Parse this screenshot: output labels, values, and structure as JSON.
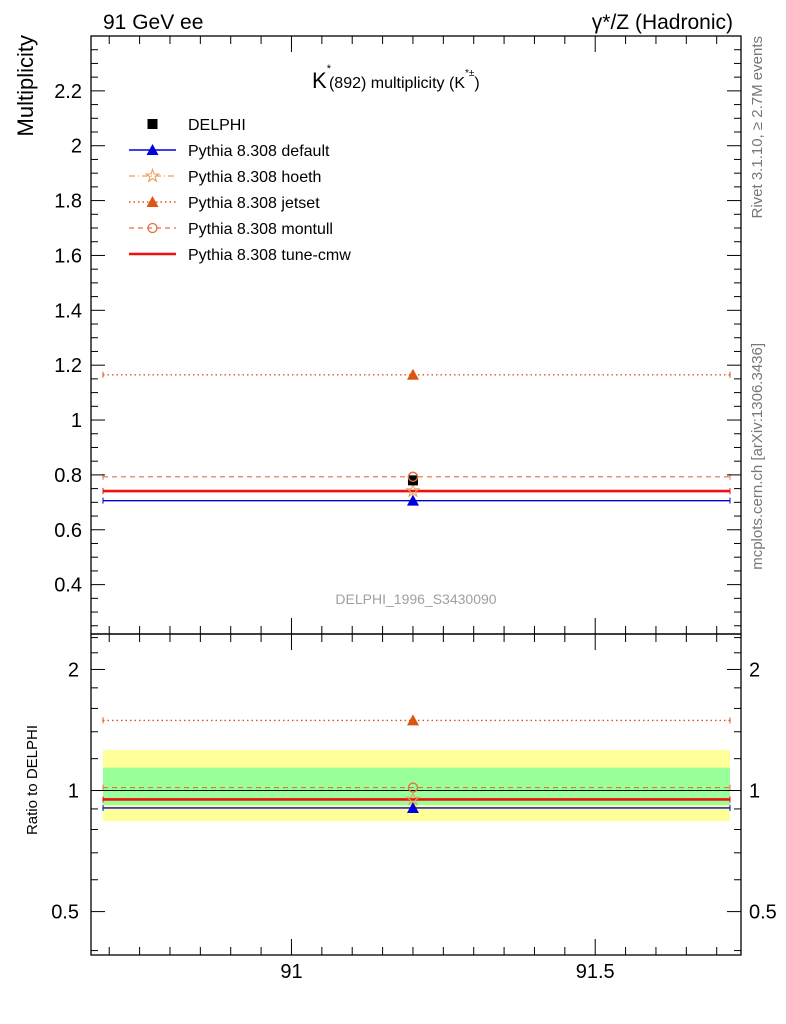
{
  "header": {
    "left": "91 GeV ee",
    "right": "γ*/Z (Hadronic)"
  },
  "side_labels": {
    "rivet": "Rivet 3.1.10, ≥ 2.7M events",
    "mcplots": "mcplots.cern.ch [arXiv:1306.3436]"
  },
  "colors": {
    "delphi": "#000000",
    "default": "#0000dd",
    "hoeth": "#e8a060",
    "jetset": "#dd5511",
    "montull": "#e07040",
    "tunecmw": "#ee1111",
    "band_outer": "#ffff99",
    "band_inner": "#99ff99"
  },
  "chart_data": [
    {
      "type": "line",
      "title": "K* (892) multiplicity (K*±)",
      "title_parts": {
        "k": "K",
        "star": "*",
        "paren": "(892) multiplicity (K",
        "sup": "*±",
        "close": ")"
      },
      "ylabel": "Multiplicity",
      "watermark": "DELPHI_1996_S3430090",
      "xlim": [
        90.67,
        91.74
      ],
      "ylim": [
        0.22,
        2.4
      ],
      "y_ticks": [
        0.4,
        0.6,
        0.8,
        1,
        1.2,
        1.4,
        1.6,
        1.8,
        2,
        2.2
      ],
      "y_tick_labels": [
        "0.4",
        "0.6",
        "0.8",
        "1",
        "1.2",
        "1.4",
        "1.6",
        "1.8",
        "2",
        "2.2"
      ],
      "legend_position": "top-left",
      "series": [
        {
          "name": "DELPHI",
          "x": [
            91.2
          ],
          "y": [
            0.78
          ],
          "marker": "square",
          "key": "delphi"
        },
        {
          "name": "Pythia 8.308 default",
          "x": [
            91.2
          ],
          "y": [
            0.706
          ],
          "marker": "triangle",
          "style": "solid",
          "key": "default"
        },
        {
          "name": "Pythia 8.308 hoeth",
          "x": [
            91.2
          ],
          "y": [
            0.742
          ],
          "marker": "star",
          "style": "dashdot",
          "key": "hoeth"
        },
        {
          "name": "Pythia 8.308 jetset",
          "x": [
            91.2
          ],
          "y": [
            1.165
          ],
          "marker": "triangle",
          "style": "dotted",
          "key": "jetset"
        },
        {
          "name": "Pythia 8.308 montull",
          "x": [
            91.2
          ],
          "y": [
            0.793
          ],
          "marker": "circle-open",
          "style": "dashed",
          "key": "montull"
        },
        {
          "name": "Pythia 8.308 tune-cmw",
          "x": [
            91.2
          ],
          "y": [
            0.741
          ],
          "marker": "none",
          "style": "thick",
          "key": "tunecmw"
        }
      ]
    },
    {
      "type": "line",
      "ylabel": "Ratio to DELPHI",
      "xlim": [
        90.67,
        91.74
      ],
      "ylim": [
        0.39,
        2.45
      ],
      "y_scale": "log",
      "y_ticks": [
        0.5,
        1,
        2
      ],
      "y_tick_labels": [
        "0.5",
        "1",
        "2"
      ],
      "x_ticks": [
        91,
        91.5
      ],
      "x_tick_labels": [
        "91",
        "91.5"
      ],
      "bands": [
        {
          "name": "outer",
          "low": 0.84,
          "high": 1.26
        },
        {
          "name": "inner",
          "low": 0.92,
          "high": 1.14
        }
      ],
      "series": [
        {
          "name": "Pythia 8.308 default",
          "x": [
            91.2
          ],
          "y": [
            0.905
          ],
          "key": "default"
        },
        {
          "name": "Pythia 8.308 hoeth",
          "x": [
            91.2
          ],
          "y": [
            0.951
          ],
          "key": "hoeth"
        },
        {
          "name": "Pythia 8.308 jetset",
          "x": [
            91.2
          ],
          "y": [
            1.494
          ],
          "key": "jetset"
        },
        {
          "name": "Pythia 8.308 montull",
          "x": [
            91.2
          ],
          "y": [
            1.017
          ],
          "key": "montull"
        },
        {
          "name": "Pythia 8.308 tune-cmw",
          "x": [
            91.2
          ],
          "y": [
            0.95
          ],
          "key": "tunecmw"
        }
      ]
    }
  ]
}
